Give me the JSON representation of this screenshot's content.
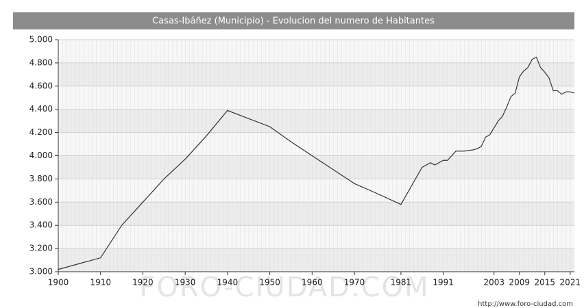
{
  "chart_data": {
    "type": "line",
    "title": "Casas-Ibáñez (Municipio) - Evolucion del numero de Habitantes",
    "watermark": "FORO-CIUDAD.COM",
    "source": "http://www.foro-ciudad.com",
    "x": [
      1900,
      1905,
      1908,
      1910,
      1915,
      1920,
      1925,
      1930,
      1935,
      1940,
      1945,
      1950,
      1955,
      1960,
      1965,
      1970,
      1975,
      1981,
      1986,
      1988,
      1989,
      1990,
      1991,
      1992,
      1994,
      1996,
      1998,
      1999,
      2000,
      2001,
      2002,
      2003,
      2004,
      2005,
      2006,
      2007,
      2008,
      2009,
      2010,
      2011,
      2012,
      2013,
      2014,
      2015,
      2016,
      2017,
      2018,
      2019,
      2020,
      2021,
      2022
    ],
    "series": [
      {
        "name": "Habitantes",
        "color": "#333333",
        "values": [
          3020,
          3070,
          3100,
          3120,
          3400,
          3600,
          3800,
          3970,
          4170,
          4390,
          4320,
          4250,
          4120,
          4000,
          3880,
          3760,
          3680,
          3580,
          3900,
          3940,
          3920,
          3940,
          3960,
          3960,
          4040,
          4040,
          4050,
          4060,
          4080,
          4160,
          4180,
          4240,
          4300,
          4340,
          4420,
          4510,
          4540,
          4680,
          4730,
          4760,
          4830,
          4850,
          4760,
          4720,
          4670,
          4560,
          4560,
          4530,
          4550,
          4550,
          4540
        ]
      }
    ],
    "xlim": [
      1900,
      2022
    ],
    "xticks": [
      1900,
      1910,
      1920,
      1930,
      1940,
      1950,
      1960,
      1970,
      1981,
      1991,
      2003,
      2009,
      2015,
      2021
    ],
    "ylim": [
      3000,
      5000
    ],
    "yticks": [
      {
        "value": 3000,
        "label": "3.000"
      },
      {
        "value": 3200,
        "label": "3.200"
      },
      {
        "value": 3400,
        "label": "3.400"
      },
      {
        "value": 3600,
        "label": "3.600"
      },
      {
        "value": 3800,
        "label": "3.800"
      },
      {
        "value": 4000,
        "label": "4.000"
      },
      {
        "value": 4200,
        "label": "4.200"
      },
      {
        "value": 4400,
        "label": "4.400"
      },
      {
        "value": 4600,
        "label": "4.600"
      },
      {
        "value": 4800,
        "label": "4.800"
      },
      {
        "value": 5000,
        "label": "5.000"
      }
    ],
    "grid": true
  }
}
